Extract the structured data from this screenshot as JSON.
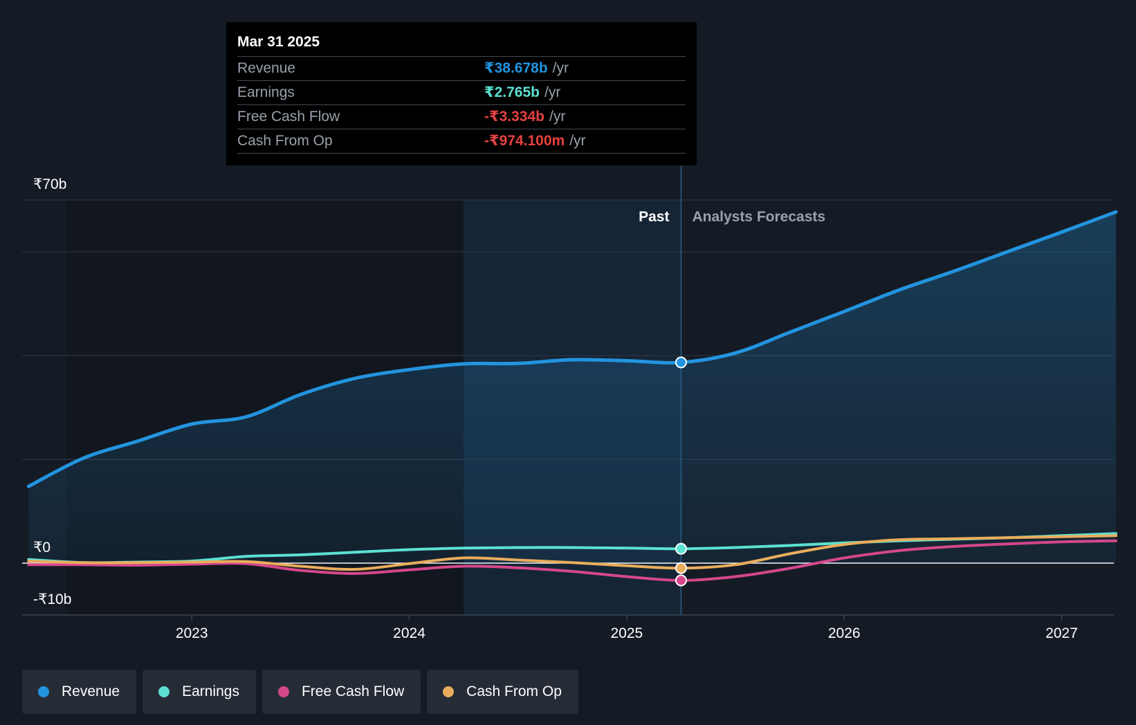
{
  "colors": {
    "background": "#151b24",
    "revenue": "#2394df",
    "earnings": "#5ce1d2",
    "free_cash_flow": "#d5478b",
    "cash_from_op": "#e9ad5c",
    "negative": "#e64141"
  },
  "tooltip": {
    "date": "Mar 31 2025",
    "rows": [
      {
        "label": "Revenue",
        "value": "₹38.678b",
        "unit": "/yr",
        "color": "#2394df"
      },
      {
        "label": "Earnings",
        "value": "₹2.765b",
        "unit": "/yr",
        "color": "#5ce1d2"
      },
      {
        "label": "Free Cash Flow",
        "value": "-₹3.334b",
        "unit": "/yr",
        "color": "#e64141"
      },
      {
        "label": "Cash From Op",
        "value": "-₹974.100m",
        "unit": "/yr",
        "color": "#e64141"
      }
    ]
  },
  "legend": [
    {
      "label": "Revenue",
      "color": "#2394df"
    },
    {
      "label": "Earnings",
      "color": "#5ce1d2"
    },
    {
      "label": "Free Cash Flow",
      "color": "#d5478b"
    },
    {
      "label": "Cash From Op",
      "color": "#e9ad5c"
    }
  ],
  "chart_data": {
    "type": "line",
    "title": "",
    "xlabel": "",
    "ylabel": "",
    "xlim": [
      2022.22,
      2027.24
    ],
    "ylim": [
      -10,
      70
    ],
    "y_ticks": [
      {
        "value": 70,
        "label": "₹70b"
      },
      {
        "value": 0,
        "label": "₹0"
      },
      {
        "value": -10,
        "label": "-₹10b"
      }
    ],
    "gridlines": [
      70,
      60,
      40,
      20,
      0,
      -10
    ],
    "x_ticks": [
      {
        "value": 2023,
        "label": "2023"
      },
      {
        "value": 2024,
        "label": "2024"
      },
      {
        "value": 2025,
        "label": "2025"
      },
      {
        "value": 2026,
        "label": "2026"
      },
      {
        "value": 2027,
        "label": "2027"
      }
    ],
    "highlight_range": [
      2024.25,
      2025.25
    ],
    "divider_x": 2025.25,
    "past_label": "Past",
    "forecast_label": "Analysts Forecasts",
    "series": [
      {
        "name": "Revenue",
        "key": "revenue",
        "fill": true,
        "x": [
          2022.25,
          2022.5,
          2022.75,
          2023.0,
          2023.25,
          2023.5,
          2023.75,
          2024.0,
          2024.25,
          2024.5,
          2024.75,
          2025.0,
          2025.25,
          2025.5,
          2025.75,
          2026.0,
          2026.25,
          2026.5,
          2026.75,
          2027.0,
          2027.25
        ],
        "values": [
          14.8,
          20.2,
          23.5,
          26.8,
          28.2,
          32.5,
          35.6,
          37.3,
          38.4,
          38.5,
          39.2,
          39.0,
          38.68,
          40.5,
          44.5,
          48.5,
          52.6,
          56.2,
          60.0,
          63.8,
          67.7
        ]
      },
      {
        "name": "Earnings",
        "key": "earnings",
        "x": [
          2022.25,
          2022.5,
          2022.75,
          2023.0,
          2023.25,
          2023.5,
          2023.75,
          2024.0,
          2024.25,
          2024.5,
          2024.75,
          2025.0,
          2025.25,
          2025.5,
          2025.75,
          2026.0,
          2026.25,
          2026.5,
          2026.75,
          2027.0,
          2027.25
        ],
        "values": [
          0.7,
          0.1,
          0.2,
          0.4,
          1.3,
          1.6,
          2.1,
          2.6,
          2.9,
          3.0,
          3.0,
          2.9,
          2.77,
          3.0,
          3.4,
          3.9,
          4.3,
          4.6,
          4.9,
          5.3,
          5.7
        ]
      },
      {
        "name": "Free Cash Flow",
        "key": "free_cash_flow",
        "x": [
          2022.25,
          2022.5,
          2022.75,
          2023.0,
          2023.25,
          2023.5,
          2023.75,
          2024.0,
          2024.25,
          2024.5,
          2024.75,
          2025.0,
          2025.25,
          2025.5,
          2025.75,
          2026.0,
          2026.25,
          2026.5,
          2026.75,
          2027.0,
          2027.25
        ],
        "values": [
          -0.3,
          -0.3,
          -0.4,
          -0.2,
          -0.1,
          -1.4,
          -2.0,
          -1.3,
          -0.6,
          -0.9,
          -1.6,
          -2.6,
          -3.33,
          -2.6,
          -1.0,
          1.0,
          2.4,
          3.2,
          3.7,
          4.1,
          4.3
        ]
      },
      {
        "name": "Cash From Op",
        "key": "cash_from_op",
        "x": [
          2022.25,
          2022.5,
          2022.75,
          2023.0,
          2023.25,
          2023.5,
          2023.75,
          2024.0,
          2024.25,
          2024.5,
          2024.75,
          2025.0,
          2025.25,
          2025.5,
          2025.75,
          2026.0,
          2026.25,
          2026.5,
          2026.75,
          2027.0,
          2027.25
        ],
        "values": [
          0.4,
          0.1,
          0.1,
          0.2,
          0.3,
          -0.6,
          -1.2,
          -0.1,
          1.0,
          0.6,
          0.1,
          -0.5,
          -0.97,
          -0.3,
          1.8,
          3.6,
          4.5,
          4.7,
          4.9,
          5.1,
          5.3
        ]
      }
    ],
    "markers_at": 2025.25
  }
}
